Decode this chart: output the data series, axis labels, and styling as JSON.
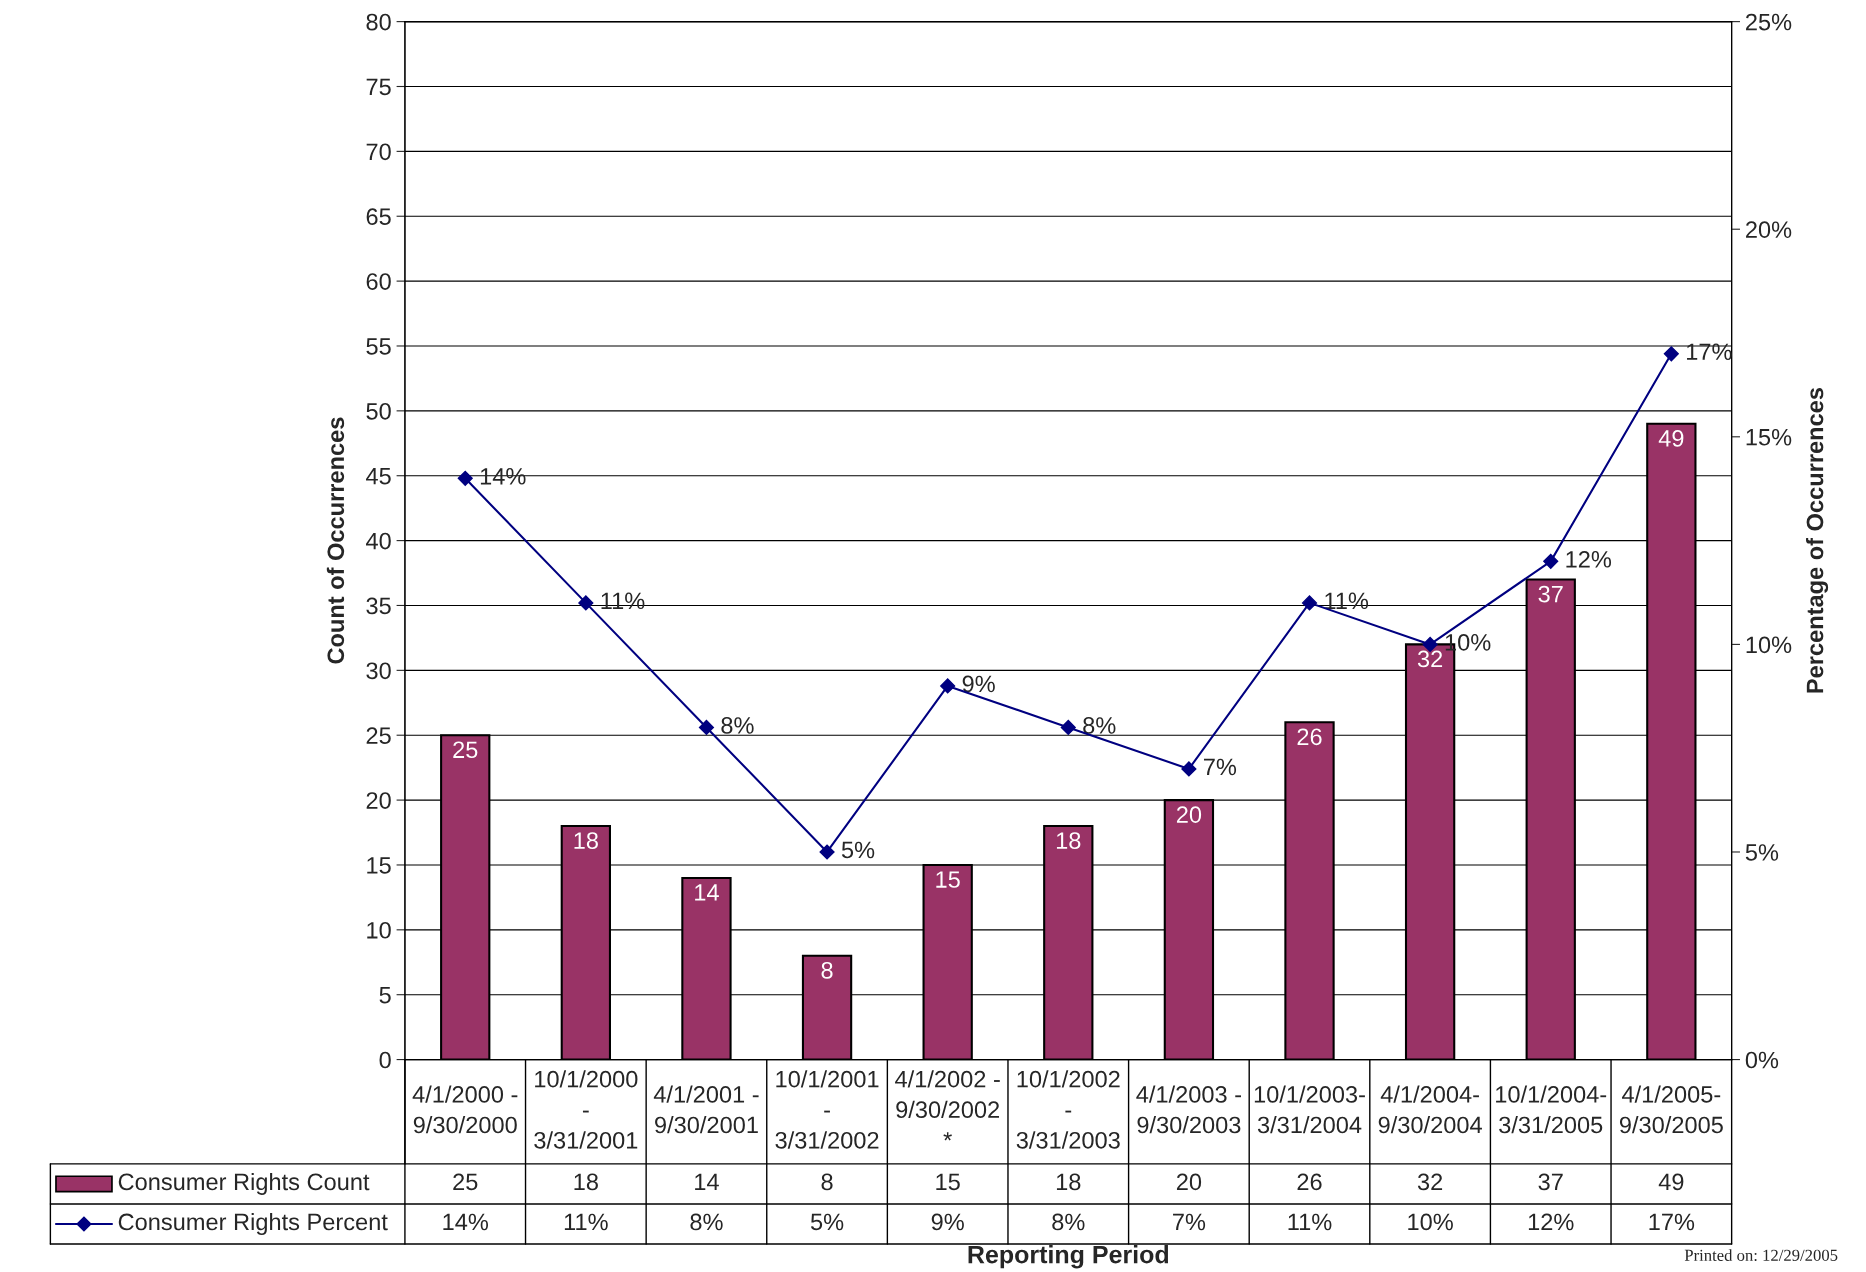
{
  "chart_data": {
    "type": "bar",
    "xlabel": "Reporting Period",
    "ylabel": "Count of Occurrences",
    "y2label": "Percentage of Occurrences",
    "categories": [
      "4/1/2000 -\n9/30/2000",
      "10/1/2000\n-\n3/31/2001",
      "4/1/2001 -\n9/30/2001",
      "10/1/2001\n-\n3/31/2002",
      "4/1/2002 -\n9/30/2002\n*",
      "10/1/2002\n-\n3/31/2003",
      "4/1/2003 -\n9/30/2003",
      "10/1/2003-\n3/31/2004",
      "4/1/2004-\n9/30/2004",
      "10/1/2004-\n3/31/2005",
      "4/1/2005-\n9/30/2005"
    ],
    "series": [
      {
        "name": "Consumer Rights Count",
        "color": "#993366",
        "values": [
          25,
          18,
          14,
          8,
          15,
          18,
          20,
          26,
          32,
          37,
          49
        ],
        "value_labels": [
          "25",
          "18",
          "14",
          "8",
          "15",
          "18",
          "20",
          "26",
          "32",
          "37",
          "49"
        ]
      },
      {
        "name": "Consumer Rights Percent",
        "type": "line",
        "axis": "y2",
        "color": "#000080",
        "marker": "diamond",
        "values": [
          14,
          11,
          8,
          5,
          9,
          8,
          7,
          11,
          10,
          12,
          17
        ],
        "value_labels": [
          "14%",
          "11%",
          "8%",
          "5%",
          "9%",
          "8%",
          "7%",
          "11%",
          "10%",
          "12%",
          "17%"
        ]
      }
    ],
    "ylim": [
      0,
      80
    ],
    "yticks": [
      0,
      5,
      10,
      15,
      20,
      25,
      30,
      35,
      40,
      45,
      50,
      55,
      60,
      65,
      70,
      75,
      80
    ],
    "y2lim": [
      0,
      25
    ],
    "y2ticks": [
      {
        "value": 0,
        "label": "0%"
      },
      {
        "value": 5,
        "label": "5%"
      },
      {
        "value": 10,
        "label": "10%"
      },
      {
        "value": 15,
        "label": "15%"
      },
      {
        "value": 20,
        "label": "20%"
      },
      {
        "value": 25,
        "label": "25%"
      }
    ],
    "grid": "y",
    "legend": "bottom",
    "data_labels": true,
    "annotations": [
      "Printed on: 12/29/2005"
    ]
  }
}
